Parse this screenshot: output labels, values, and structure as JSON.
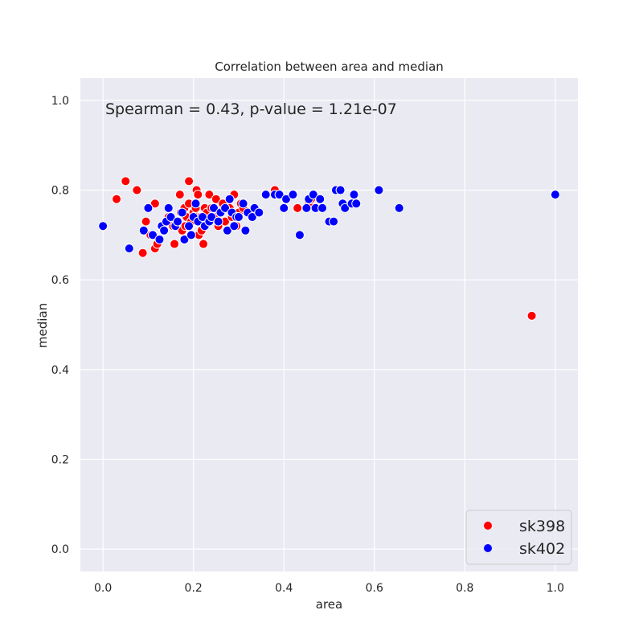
{
  "chart_data": {
    "type": "scatter",
    "title": "Correlation between area and median",
    "xlabel": "area",
    "ylabel": "median",
    "xlim": [
      -0.05,
      1.05
    ],
    "ylim": [
      -0.05,
      1.05
    ],
    "xticks": [
      "0.0",
      "0.2",
      "0.4",
      "0.6",
      "0.8",
      "1.0"
    ],
    "yticks": [
      "0.0",
      "0.2",
      "0.4",
      "0.6",
      "0.8",
      "1.0"
    ],
    "grid": true,
    "legend_position": "bottom-right",
    "annotation": "Spearman = 0.43, p-value = 1.21e-07",
    "series": [
      {
        "name": "sk398",
        "color": "#ff0000",
        "points": [
          [
            0.03,
            0.78
          ],
          [
            0.05,
            0.82
          ],
          [
            0.075,
            0.8
          ],
          [
            0.088,
            0.66
          ],
          [
            0.095,
            0.73
          ],
          [
            0.105,
            0.7
          ],
          [
            0.11,
            0.7
          ],
          [
            0.115,
            0.77
          ],
          [
            0.115,
            0.67
          ],
          [
            0.12,
            0.68
          ],
          [
            0.13,
            0.72
          ],
          [
            0.135,
            0.71
          ],
          [
            0.14,
            0.73
          ],
          [
            0.145,
            0.74
          ],
          [
            0.155,
            0.72
          ],
          [
            0.158,
            0.68
          ],
          [
            0.165,
            0.73
          ],
          [
            0.17,
            0.79
          ],
          [
            0.172,
            0.75
          ],
          [
            0.175,
            0.71
          ],
          [
            0.18,
            0.76
          ],
          [
            0.182,
            0.72
          ],
          [
            0.185,
            0.74
          ],
          [
            0.19,
            0.82
          ],
          [
            0.19,
            0.77
          ],
          [
            0.195,
            0.73
          ],
          [
            0.2,
            0.75
          ],
          [
            0.205,
            0.76
          ],
          [
            0.207,
            0.8
          ],
          [
            0.21,
            0.79
          ],
          [
            0.212,
            0.7
          ],
          [
            0.215,
            0.74
          ],
          [
            0.218,
            0.71
          ],
          [
            0.22,
            0.73
          ],
          [
            0.222,
            0.68
          ],
          [
            0.225,
            0.76
          ],
          [
            0.23,
            0.75
          ],
          [
            0.235,
            0.79
          ],
          [
            0.24,
            0.76
          ],
          [
            0.245,
            0.74
          ],
          [
            0.25,
            0.78
          ],
          [
            0.255,
            0.72
          ],
          [
            0.26,
            0.75
          ],
          [
            0.265,
            0.77
          ],
          [
            0.27,
            0.73
          ],
          [
            0.275,
            0.71
          ],
          [
            0.28,
            0.76
          ],
          [
            0.285,
            0.74
          ],
          [
            0.29,
            0.79
          ],
          [
            0.295,
            0.72
          ],
          [
            0.3,
            0.75
          ],
          [
            0.305,
            0.77
          ],
          [
            0.31,
            0.76
          ],
          [
            0.38,
            0.8
          ],
          [
            0.43,
            0.76
          ],
          [
            0.455,
            0.77
          ],
          [
            0.46,
            0.78
          ],
          [
            0.948,
            0.52
          ]
        ]
      },
      {
        "name": "sk402",
        "color": "#0000ff",
        "points": [
          [
            0.0,
            0.72
          ],
          [
            0.058,
            0.67
          ],
          [
            0.09,
            0.71
          ],
          [
            0.1,
            0.76
          ],
          [
            0.11,
            0.7
          ],
          [
            0.125,
            0.69
          ],
          [
            0.13,
            0.72
          ],
          [
            0.135,
            0.71
          ],
          [
            0.14,
            0.73
          ],
          [
            0.145,
            0.76
          ],
          [
            0.15,
            0.74
          ],
          [
            0.16,
            0.72
          ],
          [
            0.165,
            0.73
          ],
          [
            0.175,
            0.75
          ],
          [
            0.18,
            0.69
          ],
          [
            0.19,
            0.72
          ],
          [
            0.195,
            0.7
          ],
          [
            0.2,
            0.74
          ],
          [
            0.205,
            0.77
          ],
          [
            0.21,
            0.73
          ],
          [
            0.22,
            0.74
          ],
          [
            0.225,
            0.72
          ],
          [
            0.235,
            0.73
          ],
          [
            0.24,
            0.74
          ],
          [
            0.245,
            0.76
          ],
          [
            0.255,
            0.73
          ],
          [
            0.26,
            0.75
          ],
          [
            0.27,
            0.76
          ],
          [
            0.275,
            0.71
          ],
          [
            0.28,
            0.78
          ],
          [
            0.285,
            0.75
          ],
          [
            0.29,
            0.72
          ],
          [
            0.295,
            0.74
          ],
          [
            0.3,
            0.74
          ],
          [
            0.31,
            0.77
          ],
          [
            0.315,
            0.71
          ],
          [
            0.32,
            0.75
          ],
          [
            0.33,
            0.74
          ],
          [
            0.335,
            0.76
          ],
          [
            0.345,
            0.75
          ],
          [
            0.36,
            0.79
          ],
          [
            0.38,
            0.79
          ],
          [
            0.39,
            0.79
          ],
          [
            0.4,
            0.76
          ],
          [
            0.405,
            0.78
          ],
          [
            0.42,
            0.79
          ],
          [
            0.435,
            0.7
          ],
          [
            0.45,
            0.76
          ],
          [
            0.455,
            0.78
          ],
          [
            0.465,
            0.79
          ],
          [
            0.47,
            0.76
          ],
          [
            0.48,
            0.78
          ],
          [
            0.485,
            0.76
          ],
          [
            0.5,
            0.73
          ],
          [
            0.51,
            0.73
          ],
          [
            0.515,
            0.8
          ],
          [
            0.525,
            0.8
          ],
          [
            0.53,
            0.77
          ],
          [
            0.535,
            0.76
          ],
          [
            0.55,
            0.77
          ],
          [
            0.555,
            0.79
          ],
          [
            0.56,
            0.77
          ],
          [
            0.61,
            0.8
          ],
          [
            0.655,
            0.76
          ],
          [
            1.0,
            0.79
          ]
        ]
      }
    ]
  }
}
